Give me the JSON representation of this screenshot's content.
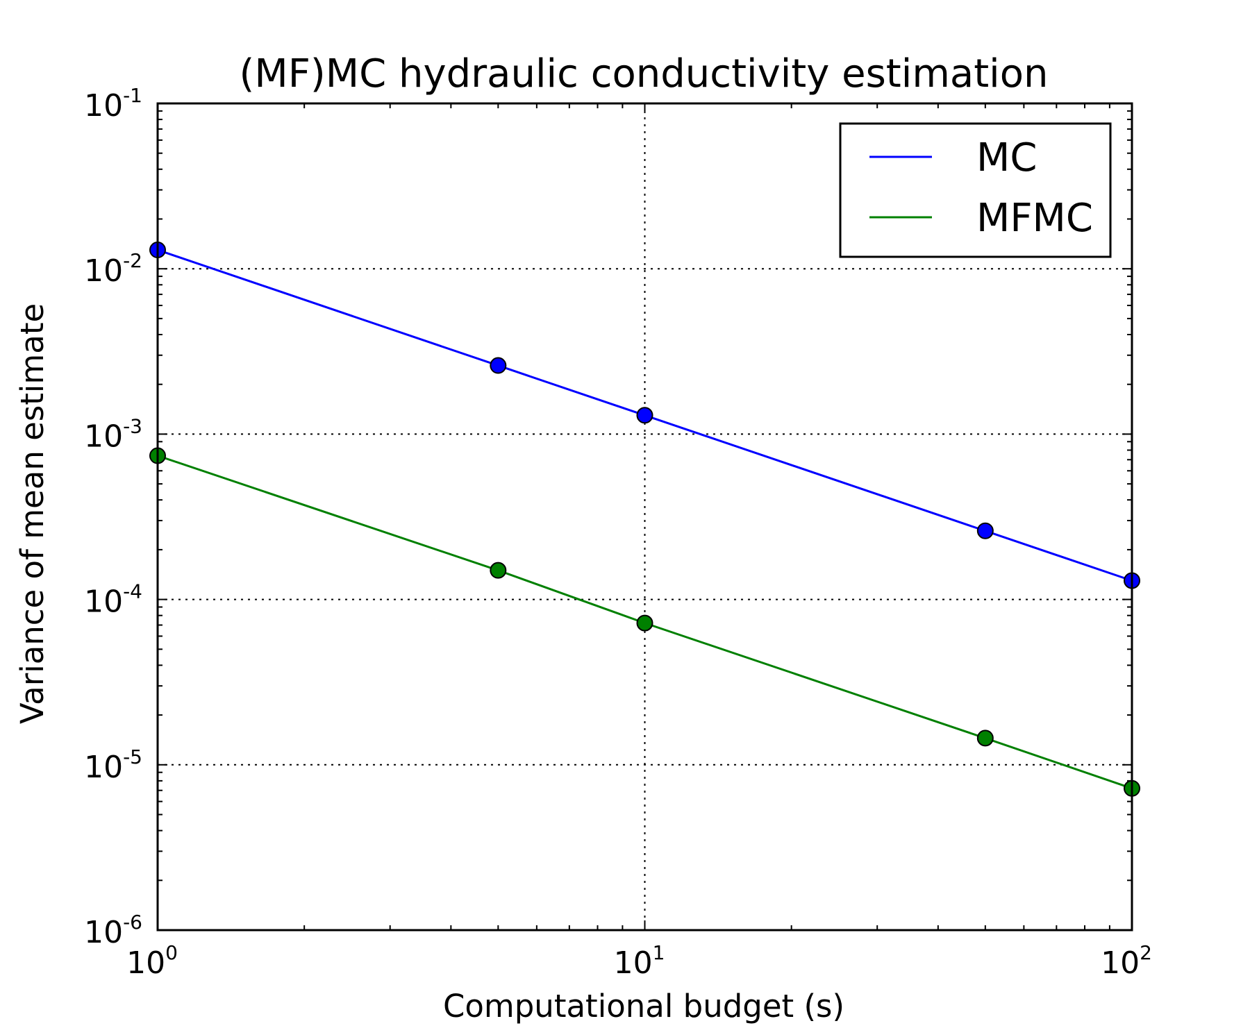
{
  "chart_data": {
    "type": "line",
    "title": "(MF)MC hydraulic conductivity estimation",
    "xlabel": "Computational budget (s)",
    "ylabel": "Variance of mean estimate",
    "xscale": "log",
    "yscale": "log",
    "xlim": [
      1,
      100
    ],
    "ylim": [
      1e-06,
      0.1
    ],
    "grid": true,
    "legend_position": "top-right",
    "x_ticks": [
      {
        "value": 1,
        "base": "10",
        "exp": "0"
      },
      {
        "value": 10,
        "base": "10",
        "exp": "1"
      },
      {
        "value": 100,
        "base": "10",
        "exp": "2"
      }
    ],
    "y_ticks": [
      {
        "value": 0.1,
        "base": "10",
        "exp": "-1"
      },
      {
        "value": 0.01,
        "base": "10",
        "exp": "-2"
      },
      {
        "value": 0.001,
        "base": "10",
        "exp": "-3"
      },
      {
        "value": 0.0001,
        "base": "10",
        "exp": "-4"
      },
      {
        "value": 1e-05,
        "base": "10",
        "exp": "-5"
      },
      {
        "value": 1e-06,
        "base": "10",
        "exp": "-6"
      }
    ],
    "series": [
      {
        "name": "MC",
        "color": "#0000ff",
        "x": [
          1,
          5,
          10,
          50,
          100
        ],
        "y": [
          0.013,
          0.0026,
          0.0013,
          0.00026,
          0.00013
        ]
      },
      {
        "name": "MFMC",
        "color": "#008000",
        "x": [
          1,
          5,
          10,
          50,
          100
        ],
        "y": [
          0.00074,
          0.00015,
          7.2e-05,
          1.45e-05,
          7.2e-06
        ]
      }
    ]
  }
}
